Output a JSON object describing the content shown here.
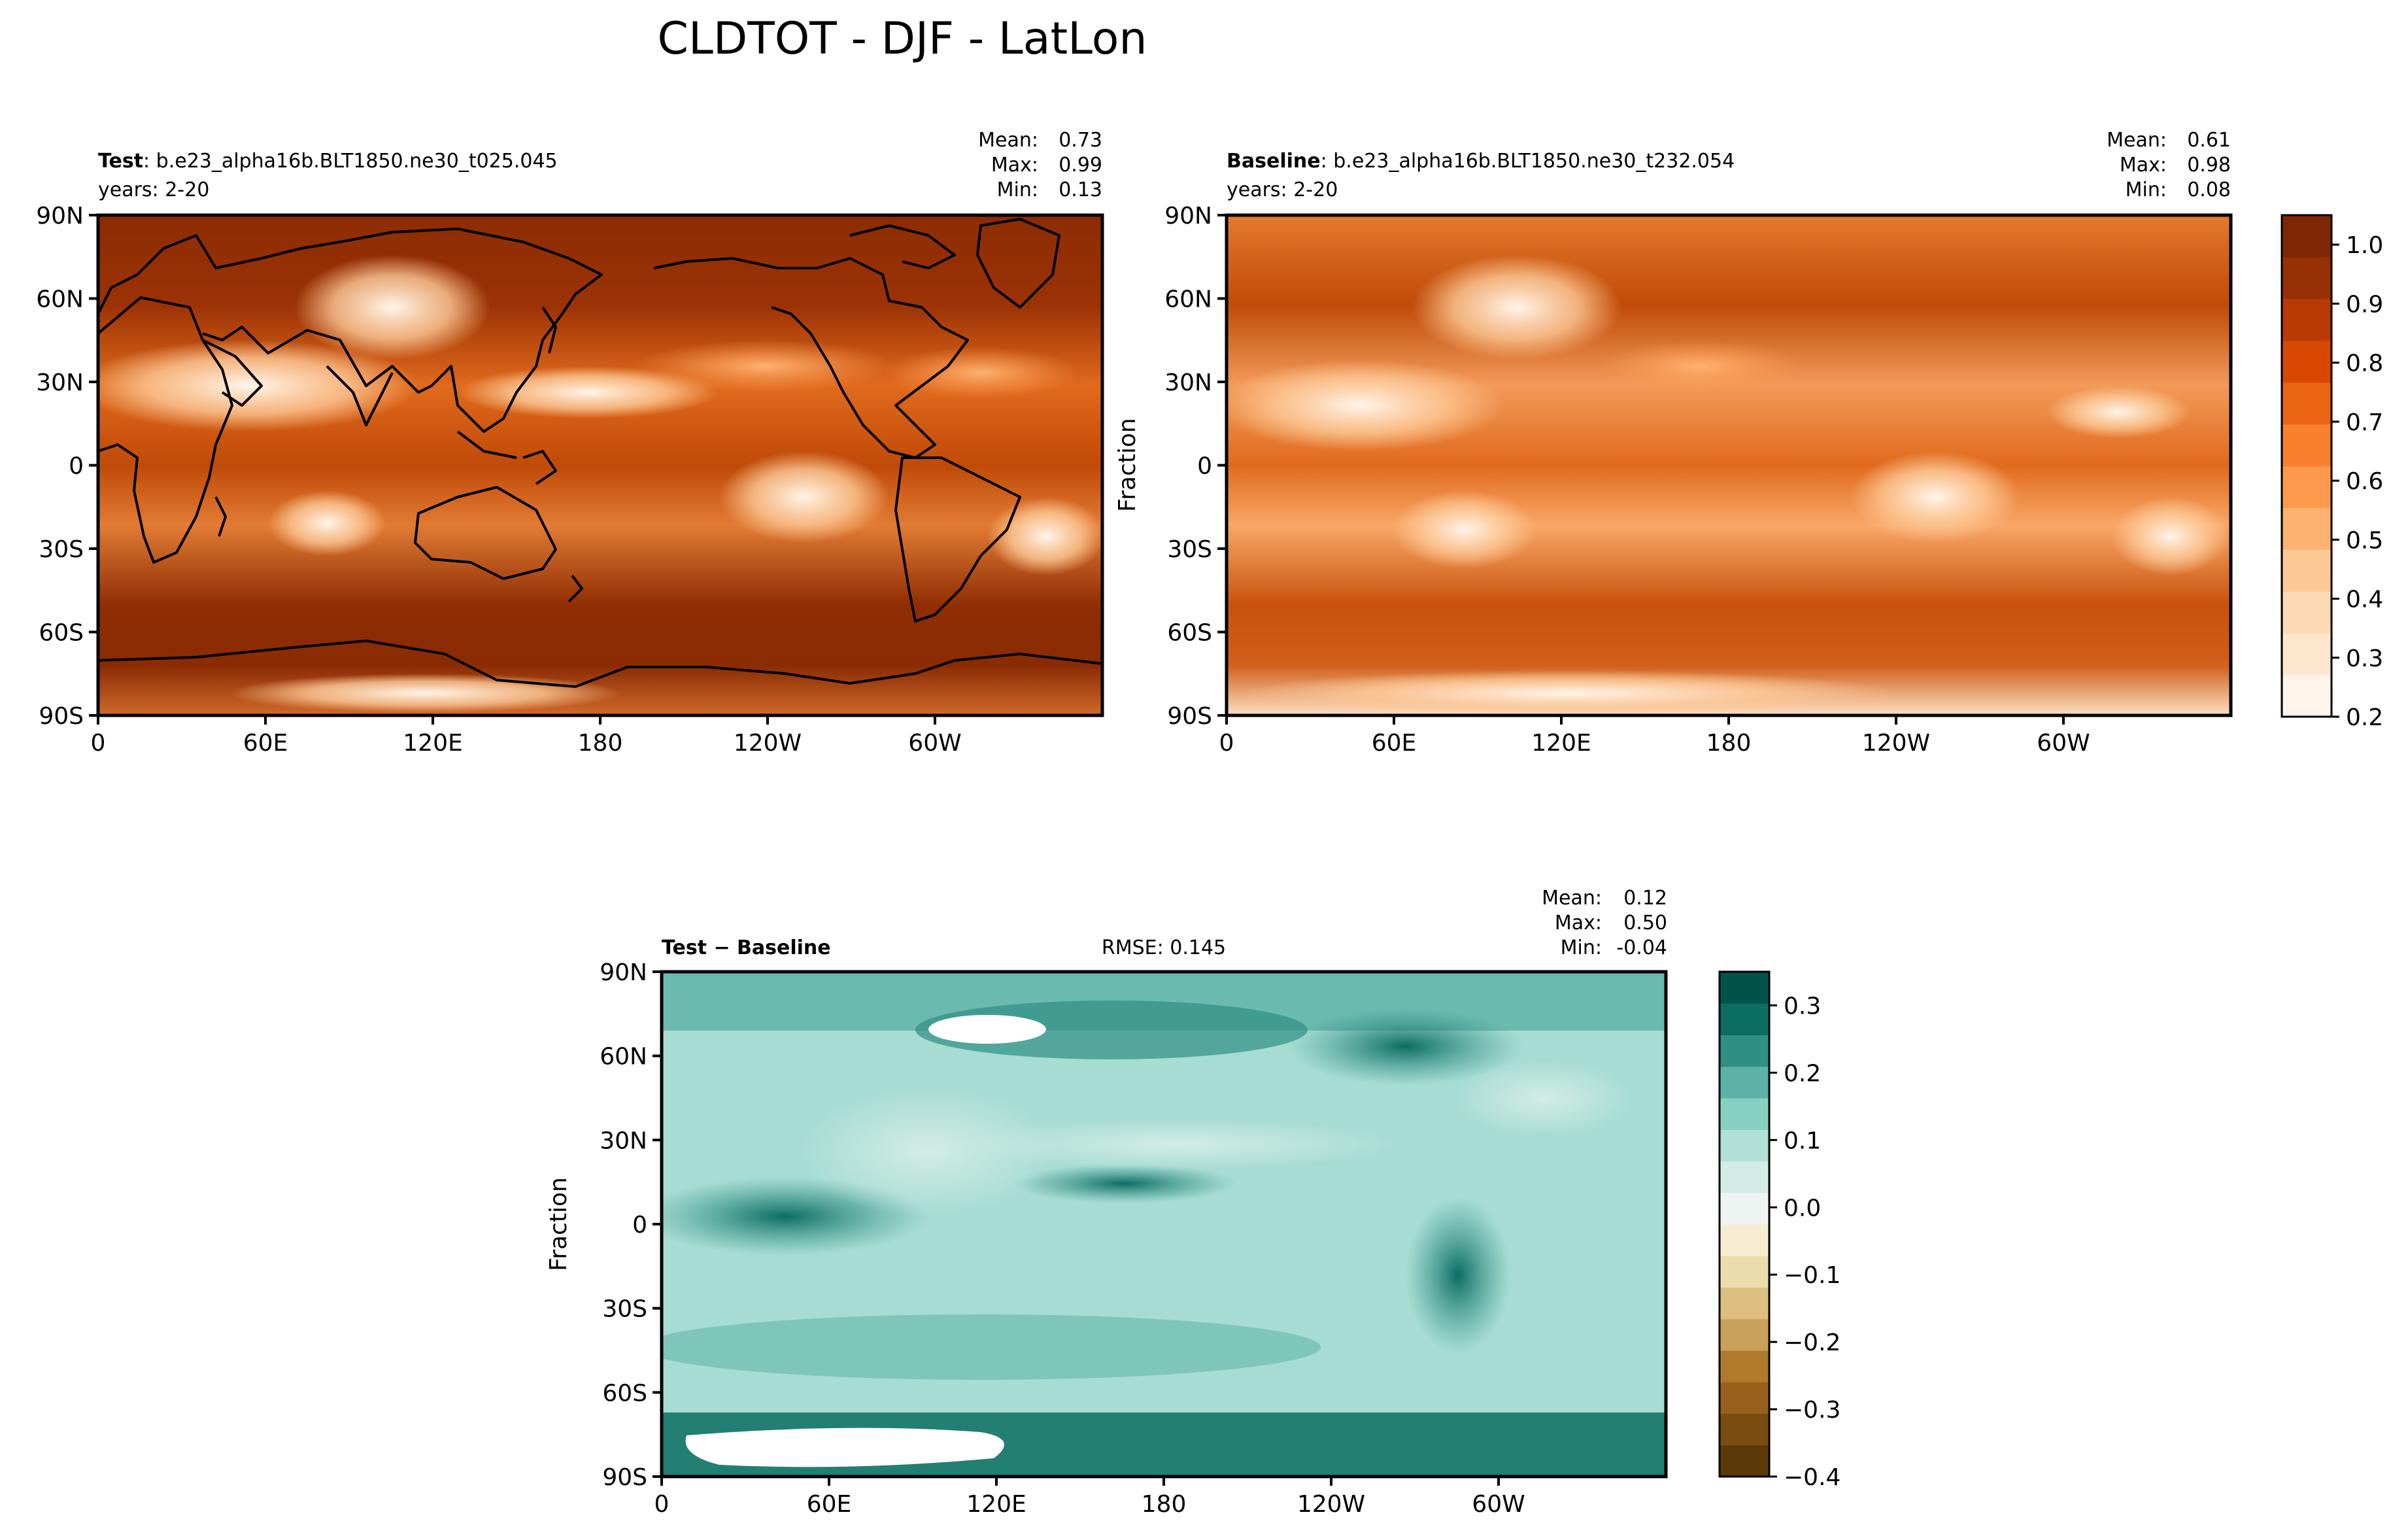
{
  "figure": {
    "title": "CLDTOT - DJF - LatLon"
  },
  "lat_ticks": [
    "90N",
    "60N",
    "30N",
    "0",
    "30S",
    "60S",
    "90S"
  ],
  "lon_ticks": [
    "0",
    "60E",
    "120E",
    "180",
    "120W",
    "60W"
  ],
  "panels": [
    {
      "id": "test",
      "name_bold": "Test",
      "case": ": b.e23_alpha16b.BLT1850.ne30_t025.045",
      "years": "years: 2-20",
      "stats": {
        "mean_label": "Mean:",
        "mean": "0.73",
        "max_label": "Max:",
        "max": "0.99",
        "min_label": "Min:",
        "min": "0.13"
      },
      "ylabel": ""
    },
    {
      "id": "baseline",
      "name_bold": "Baseline",
      "case": ": b.e23_alpha16b.BLT1850.ne30_t232.054",
      "years": "years: 2-20",
      "stats": {
        "mean_label": "Mean:",
        "mean": "0.61",
        "max_label": "Max:",
        "max": "0.98",
        "min_label": "Min:",
        "min": "0.08"
      },
      "ylabel": "Fraction"
    },
    {
      "id": "diff",
      "name_bold": "Test − Baseline",
      "rmse": "RMSE: 0.145",
      "stats": {
        "mean_label": "Mean:",
        "mean": "0.12",
        "max_label": "Max:",
        "max": "0.50",
        "min_label": "Min:",
        "min": "-0.04"
      },
      "ylabel": "Fraction"
    }
  ],
  "colorbars": [
    {
      "id": "cldtot-colorbar",
      "colormap": "Oranges",
      "range": [
        0.2,
        1.05
      ],
      "tick_values": [
        0.2,
        0.3,
        0.4,
        0.5,
        0.6,
        0.7,
        0.8,
        0.9,
        1.0
      ],
      "tick_labels": [
        "0.2",
        "0.3",
        "0.4",
        "0.5",
        "0.6",
        "0.7",
        "0.8",
        "0.9",
        "1.0"
      ],
      "colors": [
        "#fff5eb",
        "#fee6ce",
        "#fdd9b4",
        "#fdc997",
        "#fdb271",
        "#fd9a4e",
        "#f8802e",
        "#ec6514",
        "#d84801",
        "#b83a02",
        "#973005",
        "#7f2704"
      ]
    },
    {
      "id": "diff-colorbar",
      "colormap": "BrBG",
      "range": [
        -0.4,
        0.35
      ],
      "tick_values": [
        -0.4,
        -0.3,
        -0.2,
        -0.1,
        0.0,
        0.1,
        0.2,
        0.3
      ],
      "tick_labels": [
        "−0.4",
        "−0.3",
        "−0.2",
        "−0.1",
        "0.0",
        "0.1",
        "0.2",
        "0.3"
      ],
      "colors": [
        "#5b3909",
        "#7a4c0f",
        "#98601a",
        "#b07a2c",
        "#c9a05a",
        "#dcbf80",
        "#ebdbad",
        "#f5ecd2",
        "#eef4f1",
        "#d3ece6",
        "#b0e0d6",
        "#86cfc1",
        "#5cb2a6",
        "#2f8f85",
        "#0c6d63",
        "#01534a"
      ]
    }
  ],
  "colors": {
    "test_ocean": "#b54207",
    "baseline_ocean": "#d8600f",
    "diff_background": "#a6dcd2",
    "land_outline": "#000000",
    "no_data": "#ffffff"
  }
}
